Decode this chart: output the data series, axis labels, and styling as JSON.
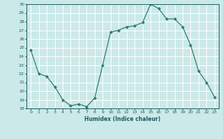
{
  "x": [
    0,
    1,
    2,
    3,
    4,
    5,
    6,
    7,
    8,
    9,
    10,
    11,
    12,
    13,
    14,
    15,
    16,
    17,
    18,
    19,
    20,
    21,
    22,
    23
  ],
  "y": [
    24.7,
    22.0,
    21.7,
    20.5,
    19.0,
    18.3,
    18.5,
    18.2,
    19.2,
    23.0,
    26.8,
    27.0,
    27.4,
    27.5,
    27.9,
    30.0,
    29.5,
    28.3,
    28.3,
    27.4,
    25.3,
    22.3,
    21.0,
    19.3
  ],
  "title": "",
  "xlabel": "Humidex (Indice chaleur)",
  "ylabel": "",
  "ylim": [
    18,
    30
  ],
  "yticks": [
    18,
    19,
    20,
    21,
    22,
    23,
    24,
    25,
    26,
    27,
    28,
    29,
    30
  ],
  "xticks": [
    0,
    1,
    2,
    3,
    4,
    5,
    6,
    7,
    8,
    9,
    10,
    11,
    12,
    13,
    14,
    15,
    16,
    17,
    18,
    19,
    20,
    21,
    22,
    23
  ],
  "line_color": "#2e7d6d",
  "marker_color": "#2e7d6d",
  "bg_color": "#cce9e9",
  "grid_color": "#ffffff",
  "label_color": "#1a5c5c",
  "tick_label_color": "#1a5c5c"
}
